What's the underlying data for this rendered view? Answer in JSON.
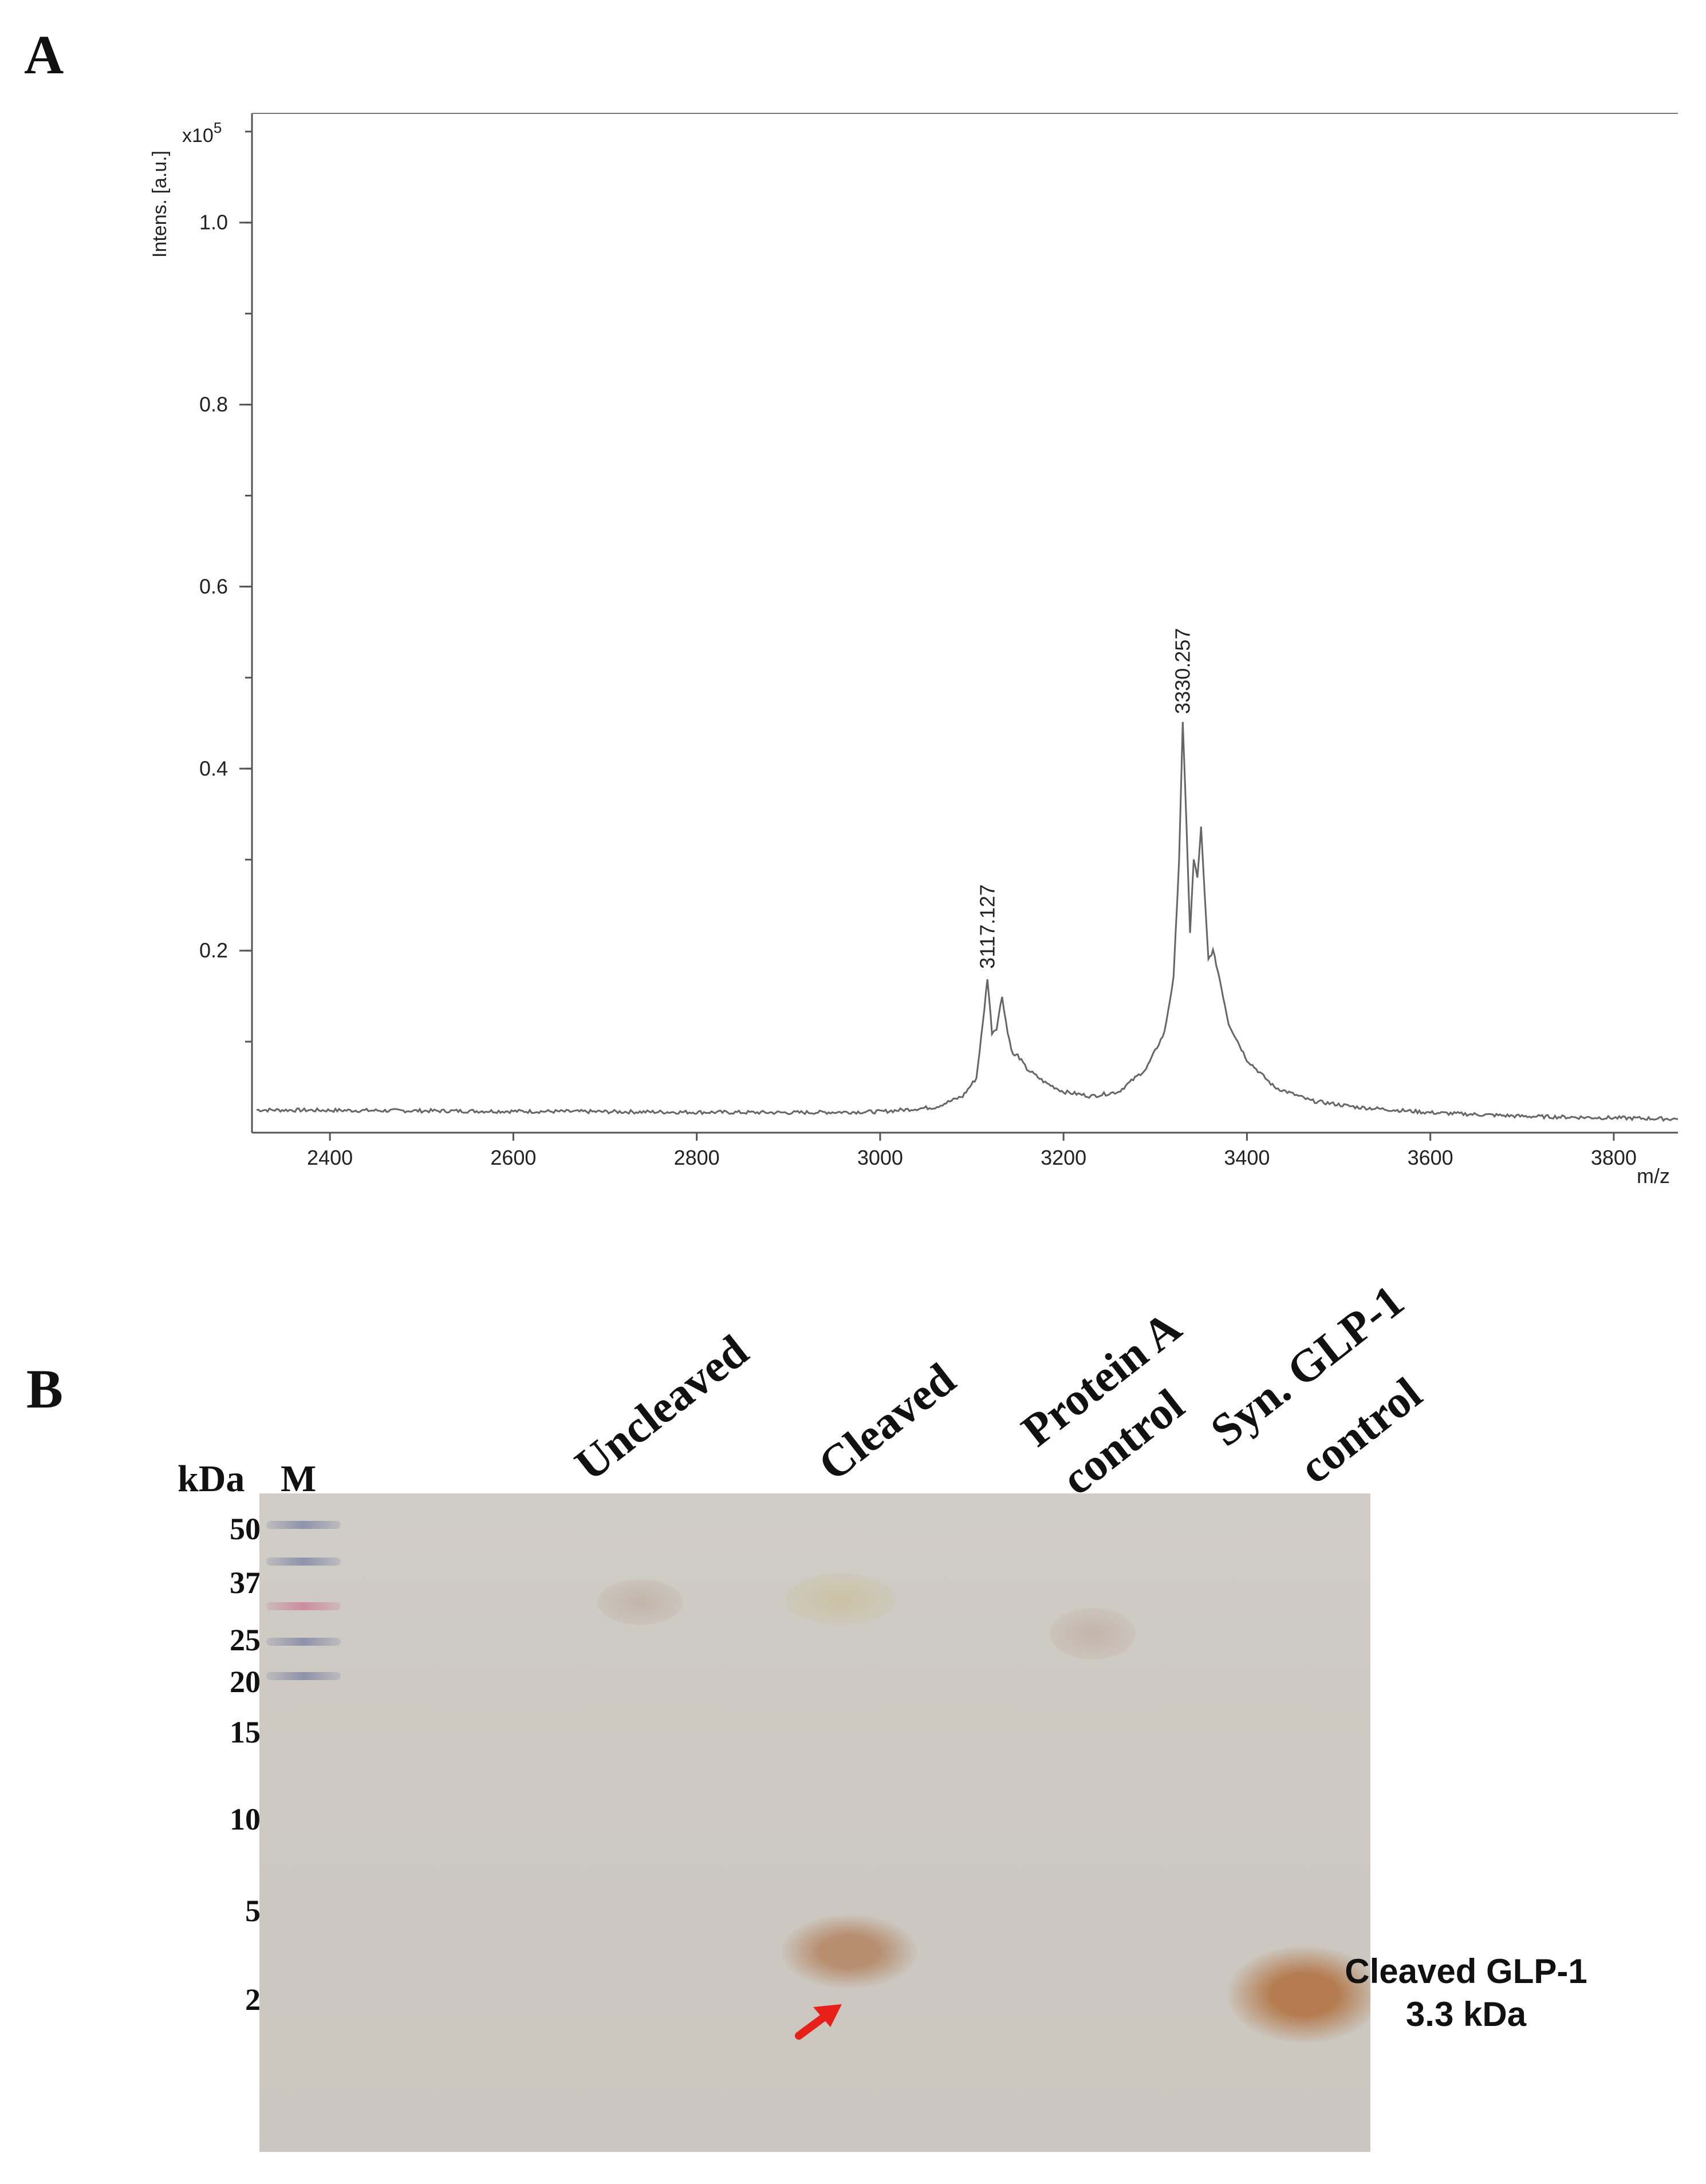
{
  "panels": {
    "a": "A",
    "b": "B"
  },
  "chart_data": {
    "type": "line",
    "title": "",
    "xlabel": "m/z",
    "ylabel": "Intens. [a.u.]",
    "y_multiplier": "x10",
    "y_multiplier_exp": "5",
    "xlim": [
      2315,
      3870
    ],
    "ylim": [
      0,
      1.12
    ],
    "xticks": [
      2400,
      2600,
      2800,
      3000,
      3200,
      3400,
      3600,
      3800
    ],
    "yticks": [
      0.2,
      0.4,
      0.6,
      0.8,
      1.0
    ],
    "ytick_labels": [
      "0.2",
      "0.4",
      "0.6",
      "0.8",
      "1.0"
    ],
    "grid": false,
    "line_color": "#666666",
    "series": [
      {
        "x": [
          2320,
          2500,
          2700,
          2900,
          3000,
          3060,
          3090,
          3105,
          3112,
          3117,
          3122,
          3127,
          3133,
          3139,
          3145,
          3150,
          3160,
          3180,
          3200,
          3230,
          3260,
          3290,
          3310,
          3320,
          3326,
          3330,
          3334,
          3338,
          3342,
          3346,
          3350,
          3354,
          3358,
          3363,
          3370,
          3380,
          3400,
          3430,
          3470,
          3520,
          3600,
          3700,
          3870
        ],
        "y": [
          0.025,
          0.024,
          0.023,
          0.022,
          0.023,
          0.028,
          0.04,
          0.06,
          0.12,
          0.17,
          0.11,
          0.115,
          0.15,
          0.11,
          0.085,
          0.085,
          0.07,
          0.055,
          0.045,
          0.04,
          0.045,
          0.07,
          0.11,
          0.17,
          0.3,
          0.45,
          0.34,
          0.22,
          0.3,
          0.28,
          0.335,
          0.26,
          0.19,
          0.2,
          0.17,
          0.12,
          0.08,
          0.05,
          0.035,
          0.028,
          0.022,
          0.018,
          0.015
        ]
      }
    ],
    "annotations": [
      {
        "x": 3117.127,
        "y": 0.17,
        "label": "3117.127"
      },
      {
        "x": 3330.257,
        "y": 0.45,
        "label": "3330.257"
      }
    ]
  },
  "gel": {
    "unit_label": "kDa",
    "ladder_label": "M",
    "markers": [
      "50",
      "37",
      "25",
      "20",
      "15",
      "10",
      "5",
      "2"
    ],
    "lanes": [
      {
        "line1": "Uncleaved",
        "line2": ""
      },
      {
        "line1": "Cleaved",
        "line2": ""
      },
      {
        "line1": "Protein A",
        "line2": "control"
      },
      {
        "line1": "Syn. GLP-1",
        "line2": "control"
      }
    ],
    "annotation_line1": "Cleaved GLP-1",
    "annotation_line2": "3.3 kDa",
    "arrow_color": "#e8201a",
    "band_color": "#b07a55"
  }
}
